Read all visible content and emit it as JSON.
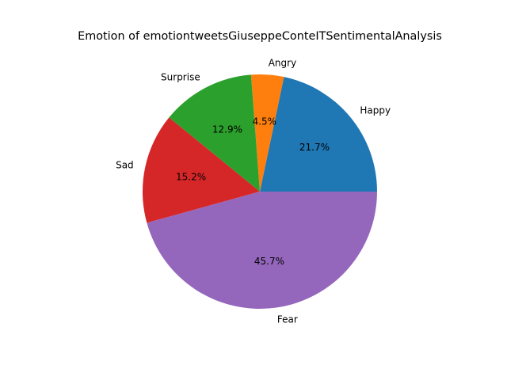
{
  "chart_data": {
    "type": "pie",
    "title": "Emotion of emotiontweetsGiuseppeConteITSentimentalAnalysis",
    "slices": [
      {
        "label": "Happy",
        "value": 21.7,
        "pct_text": "21.7%",
        "color": "#1f77b4"
      },
      {
        "label": "Angry",
        "value": 4.5,
        "pct_text": "4.5%",
        "color": "#ff7f0e"
      },
      {
        "label": "Surprise",
        "value": 12.9,
        "pct_text": "12.9%",
        "color": "#2ca02c"
      },
      {
        "label": "Sad",
        "value": 15.2,
        "pct_text": "15.2%",
        "color": "#d62728"
      },
      {
        "label": "Fear",
        "value": 45.7,
        "pct_text": "45.7%",
        "color": "#9467bd"
      }
    ],
    "start_angle_deg": 0,
    "direction": "counterclockwise",
    "legend": "none"
  }
}
